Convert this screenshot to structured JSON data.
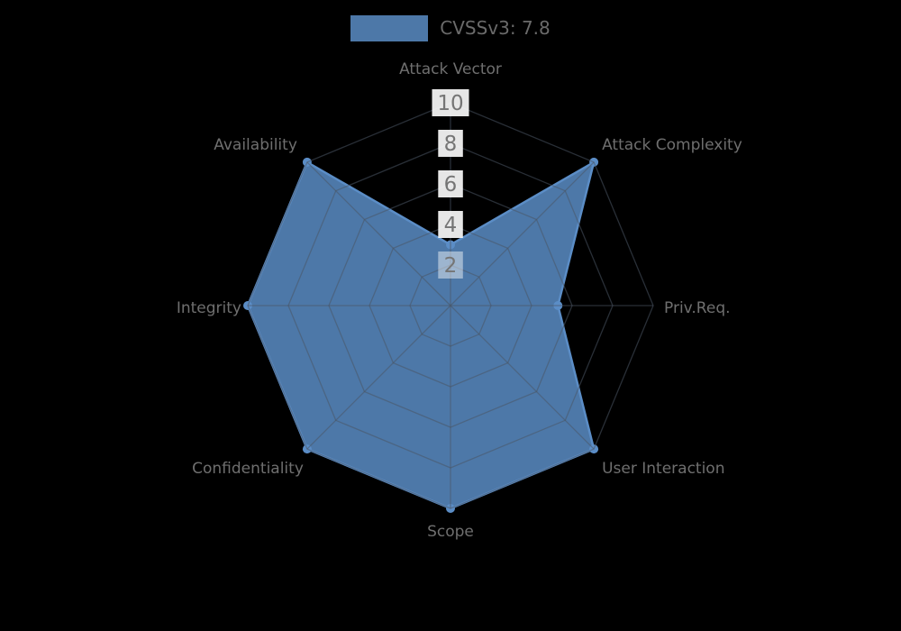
{
  "figure": {
    "background": "#000000"
  },
  "legend": {
    "label": "CVSSv3: 7.8",
    "swatch_color": "#5b8dc6",
    "swatch_opacity": 0.85,
    "text_color": "#6a6a6a"
  },
  "chart_data": {
    "type": "radar",
    "title": "",
    "axes": [
      "Attack Vector",
      "Attack Complexity",
      "Priv.Req.",
      "User Interaction",
      "Scope",
      "Confidentiality",
      "Integrity",
      "Availability"
    ],
    "series": [
      {
        "name": "CVSSv3: 7.8",
        "values": [
          3.0,
          10,
          5.3,
          10,
          10,
          10,
          10,
          10
        ],
        "fill_color": "#5b8dc6",
        "fill_opacity": 0.85,
        "line_color": "#5b8dc6",
        "marker": "circle"
      }
    ],
    "scale": {
      "min": 0,
      "max": 10,
      "ticks": [
        2,
        4,
        6,
        8,
        10
      ],
      "tick_label_color": "#757575",
      "tick_box_color": "#ffffff"
    },
    "grid": {
      "shape": "polygon-web",
      "rings": [
        2,
        4,
        6,
        8,
        10
      ],
      "color": "#4b5564"
    },
    "axis_label_color": "#6f6f6f",
    "legend_position": "top-center"
  }
}
